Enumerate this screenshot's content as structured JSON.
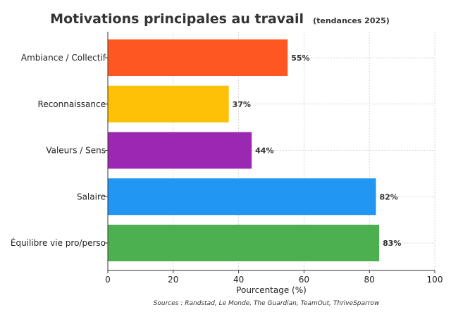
{
  "chart_data": {
    "type": "bar",
    "orientation": "horizontal",
    "title": "Motivations principales au travail",
    "subtitle": "(tendances 2025)",
    "xlabel": "Pourcentage (%)",
    "ylabel": "",
    "categories": [
      "Ambiance / Collectif",
      "Reconnaissance",
      "Valeurs / Sens",
      "Salaire",
      "Équilibre vie pro/perso"
    ],
    "values": [
      55,
      37,
      44,
      82,
      83
    ],
    "data_labels": [
      "55%",
      "37%",
      "44%",
      "82%",
      "83%"
    ],
    "colors": [
      "#ff5722",
      "#ffc107",
      "#9c27b0",
      "#2196f3",
      "#4caf50"
    ],
    "xlim": [
      0,
      100
    ],
    "xticks": [
      0,
      20,
      40,
      60,
      80,
      100
    ],
    "grid": true,
    "source": "Sources : Randstad, Le Monde, The Guardian, TeamOut, ThriveSparrow"
  }
}
